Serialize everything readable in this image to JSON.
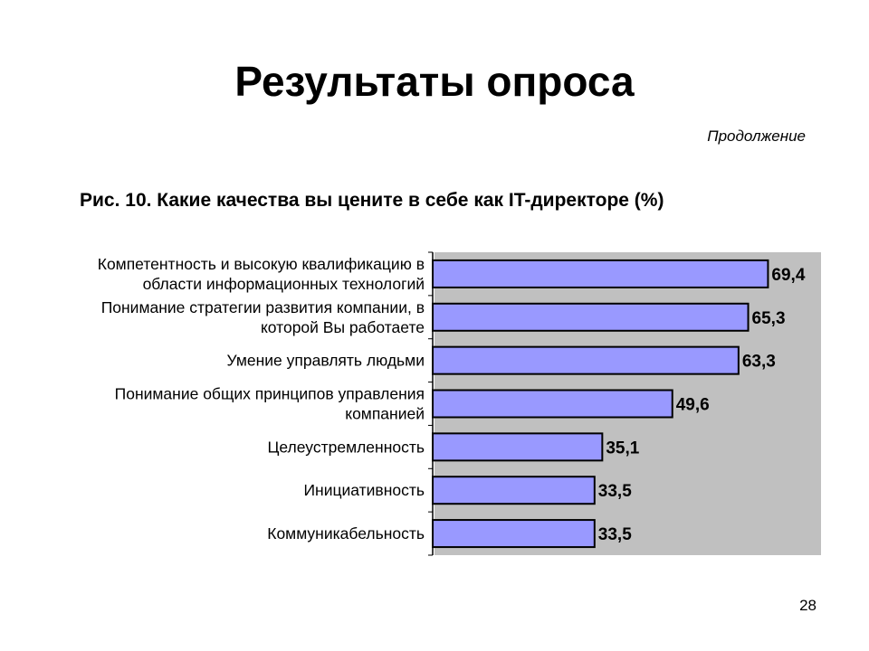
{
  "slide": {
    "title": "Результаты опроса",
    "continuation": "Продолжение",
    "page_number": "28"
  },
  "chart_data": {
    "type": "bar",
    "orientation": "horizontal",
    "title": "Рис. 10.  Какие качества вы цените в себе как IT-директоре (%)",
    "categories": [
      [
        "Компетентность и высокую квалификацию в",
        "области информационных технологий"
      ],
      [
        "Понимание стратегии развития компании, в",
        "которой Вы работаете"
      ],
      [
        "Умение управлять людьми"
      ],
      [
        "Понимание общих принципов управления",
        "компанией"
      ],
      [
        "Целеустремленность"
      ],
      [
        "Инициативность"
      ],
      [
        "Коммуникабельность"
      ]
    ],
    "values": [
      69.4,
      65.3,
      63.3,
      49.6,
      35.1,
      33.5,
      33.5
    ],
    "value_labels": [
      "69,4",
      "65,3",
      "63,3",
      "49,6",
      "35,1",
      "33,5",
      "33,5"
    ],
    "xlim": [
      0,
      80
    ],
    "grid": false,
    "legend": "none",
    "colors": {
      "bar": "#9999ff",
      "plot_background": "#c0c0c0",
      "bar_border": "#000000"
    }
  }
}
